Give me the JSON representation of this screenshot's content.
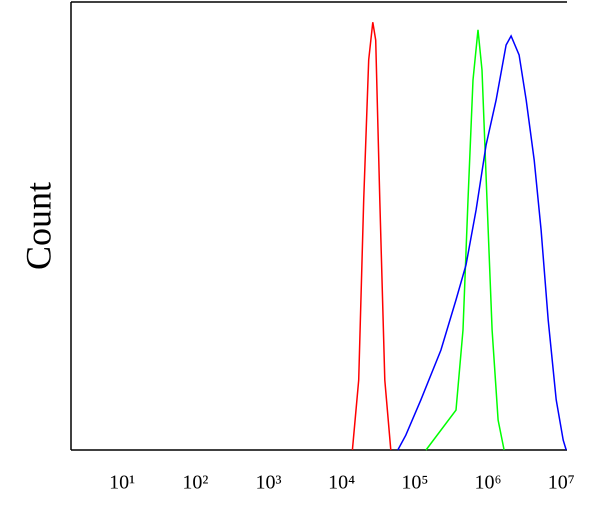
{
  "chart_data": {
    "type": "line",
    "y_label": "Count",
    "xscale": "log",
    "xlim": [
      2,
      12000000
    ],
    "ylim": [
      0,
      100
    ],
    "xticks": [
      {
        "value": 10,
        "label": "10¹"
      },
      {
        "value": 100,
        "label": "10²"
      },
      {
        "value": 1000,
        "label": "10³"
      },
      {
        "value": 10000,
        "label": "10⁴"
      },
      {
        "value": 100000,
        "label": "10⁵"
      },
      {
        "value": 1000000,
        "label": "10⁶"
      },
      {
        "value": 10000000,
        "label": "10⁷"
      }
    ],
    "series": [
      {
        "color": "#ff0000",
        "x": [
          14000,
          17100,
          20000,
          23400,
          26600,
          29200,
          33200,
          38800,
          46900
        ],
        "values": [
          0,
          15.6,
          55.8,
          87.1,
          95.5,
          91.5,
          55.8,
          15.6,
          0
        ]
      },
      {
        "color": "#00ff00",
        "x": [
          142000,
          365000,
          455000,
          532000,
          624000,
          730000,
          828000,
          968000,
          1135000,
          1371000,
          1656000
        ],
        "values": [
          0,
          8.9,
          26.8,
          55.8,
          82.6,
          93.8,
          84.8,
          55.8,
          26.8,
          6.7,
          0
        ]
      },
      {
        "color": "#0000ff",
        "x": [
          58500,
          75300,
          120800,
          227000,
          365000,
          500000,
          686000,
          940000,
          1288000,
          1766000,
          2066000,
          2660000,
          3320000,
          4270000,
          5320000,
          6640000,
          8550000,
          10640000,
          11700000
        ],
        "values": [
          0,
          3.3,
          11.2,
          22.3,
          33.5,
          41.3,
          53.6,
          68.1,
          78.1,
          90.4,
          92.4,
          88.2,
          78.1,
          64.7,
          49.1,
          29.0,
          11.2,
          2.2,
          0
        ]
      }
    ]
  }
}
